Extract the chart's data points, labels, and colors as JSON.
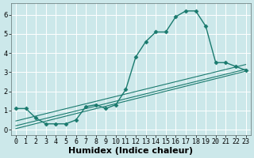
{
  "xlabel": "Humidex (Indice chaleur)",
  "bg_color": "#cce8ea",
  "grid_color": "#ffffff",
  "line_color": "#1a7a6e",
  "xlim": [
    -0.5,
    23.5
  ],
  "ylim": [
    -0.3,
    6.6
  ],
  "xticks": [
    0,
    1,
    2,
    3,
    4,
    5,
    6,
    7,
    8,
    9,
    10,
    11,
    12,
    13,
    14,
    15,
    16,
    17,
    18,
    19,
    20,
    21,
    22,
    23
  ],
  "yticks": [
    0,
    1,
    2,
    3,
    4,
    5,
    6
  ],
  "series1_x": [
    0,
    1,
    2,
    3,
    4,
    5,
    6,
    7,
    8,
    9,
    10,
    11,
    12,
    13,
    14,
    15,
    16,
    17,
    18,
    19,
    20,
    21,
    22,
    23
  ],
  "series1_y": [
    1.1,
    1.1,
    0.6,
    0.3,
    0.3,
    0.3,
    0.5,
    1.2,
    1.3,
    1.1,
    1.3,
    2.1,
    3.8,
    4.6,
    5.1,
    5.1,
    5.9,
    6.2,
    6.2,
    5.4,
    3.5,
    3.5,
    3.3,
    3.1
  ],
  "series2_x": [
    0,
    23
  ],
  "series2_y": [
    0.05,
    3.05
  ],
  "series3_x": [
    0,
    23
  ],
  "series3_y": [
    0.2,
    3.15
  ],
  "series4_x": [
    0,
    23
  ],
  "series4_y": [
    0.45,
    3.4
  ],
  "font_size_label": 7,
  "font_size_tick": 6,
  "font_size_xlabel": 8
}
